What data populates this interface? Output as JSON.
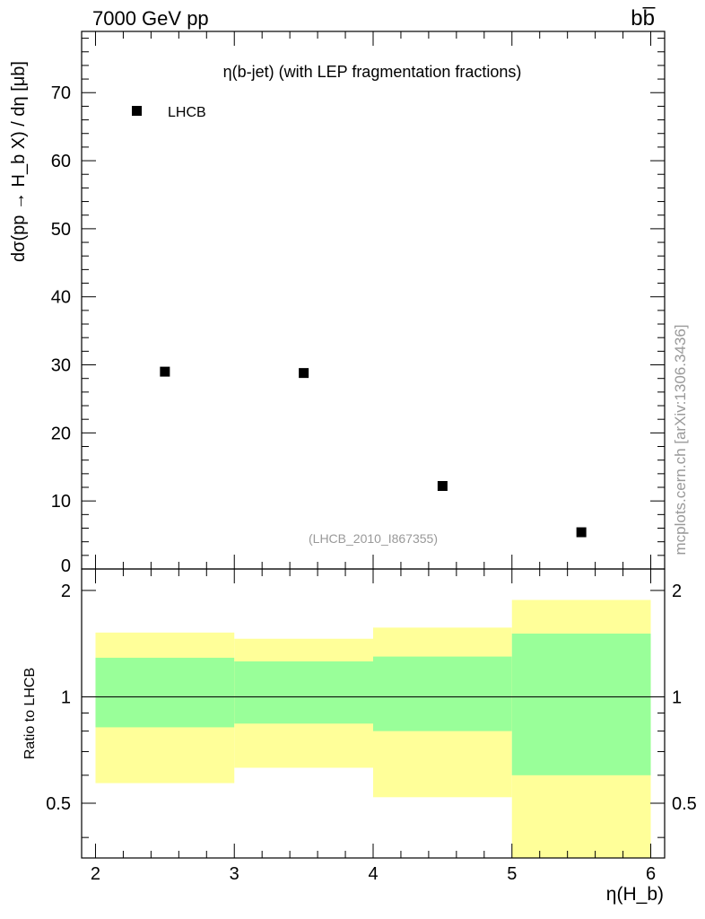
{
  "header": {
    "left_label": "7000 GeV pp",
    "right_label": "bb̅",
    "side_label": "mcplots.cern.ch [arXiv:1306.3436]"
  },
  "chart_data": [
    {
      "type": "scatter",
      "title": "η(b-jet) (with LEP fragmentation fractions)",
      "watermark": "(LHCB_2010_I867355)",
      "ylabel": "dσ(pp → H_b X) / dη [μb]",
      "xlim": [
        1.9,
        6.1
      ],
      "ylim": [
        0,
        79
      ],
      "yticks": [
        0,
        10,
        20,
        30,
        40,
        50,
        60,
        70
      ],
      "legend_position": "top-left",
      "series": [
        {
          "name": "LHCB",
          "color": "#000000",
          "x": [
            2.5,
            3.5,
            4.5,
            5.5
          ],
          "y": [
            29.0,
            28.8,
            12.2,
            5.4
          ]
        }
      ]
    },
    {
      "type": "area",
      "ylabel": "Ratio to LHCB",
      "xlabel": "η(H_b)",
      "xlim": [
        1.9,
        6.1
      ],
      "ylim": [
        0.35,
        2.3
      ],
      "xticks": [
        2,
        3,
        4,
        5,
        6
      ],
      "yticks": [
        0.5,
        1,
        2
      ],
      "reference_line": 1,
      "bins": [
        {
          "xlow": 2,
          "xhigh": 3,
          "inner": [
            0.82,
            1.29
          ],
          "outer": [
            0.57,
            1.52
          ]
        },
        {
          "xlow": 3,
          "xhigh": 4,
          "inner": [
            0.84,
            1.26
          ],
          "outer": [
            0.63,
            1.46
          ]
        },
        {
          "xlow": 4,
          "xhigh": 5,
          "inner": [
            0.8,
            1.3
          ],
          "outer": [
            0.52,
            1.57
          ]
        },
        {
          "xlow": 5,
          "xhigh": 6,
          "inner": [
            0.6,
            1.51
          ],
          "outer": [
            0.33,
            1.88
          ]
        }
      ],
      "band_colors": {
        "inner": "#99ff99",
        "outer": "#ffff99"
      }
    }
  ]
}
